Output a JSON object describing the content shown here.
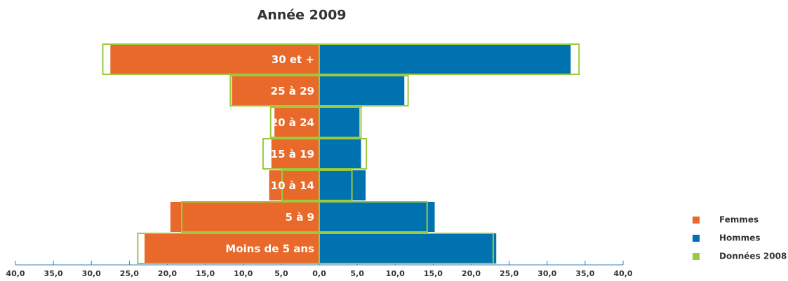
{
  "chart_data": {
    "type": "pyramid",
    "title": "Année 2009",
    "categories": [
      "30 et +",
      "25 à 29",
      "20 à 24",
      "15 à 19",
      "10 à 14",
      "5 à 9",
      "Moins de 5 ans"
    ],
    "series": [
      {
        "name": "Femmes",
        "color": "#e8692a",
        "values": [
          27.5,
          11.5,
          5.9,
          6.3,
          6.6,
          19.6,
          23.0
        ]
      },
      {
        "name": "Hommes",
        "color": "#0072b0",
        "values": [
          33.1,
          11.2,
          5.3,
          5.5,
          6.1,
          15.2,
          23.3
        ]
      },
      {
        "name": "Données 2008",
        "color": "#9dc93c",
        "values_left": [
          28.5,
          11.7,
          6.4,
          7.4,
          4.9,
          18.1,
          23.9
        ],
        "values_right": [
          34.2,
          11.7,
          5.5,
          6.2,
          4.3,
          14.2,
          22.9
        ]
      }
    ],
    "xlim": [
      0,
      40
    ],
    "xticks_left": [
      {
        "value": 40,
        "label": "40,0"
      },
      {
        "value": 35,
        "label": "35,0"
      },
      {
        "value": 30,
        "label": "30,0"
      },
      {
        "value": 25,
        "label": "25,0"
      },
      {
        "value": 20,
        "label": "20,0"
      },
      {
        "value": 15,
        "label": "15,0"
      },
      {
        "value": 10,
        "label": "10,0"
      },
      {
        "value": 5,
        "label": "5,0"
      }
    ],
    "xticks_right": [
      {
        "value": 0,
        "label": "0,0"
      },
      {
        "value": 5,
        "label": "5,0"
      },
      {
        "value": 10,
        "label": "10,0"
      },
      {
        "value": 15,
        "label": "15,0"
      },
      {
        "value": 20,
        "label": "20,0"
      },
      {
        "value": 25,
        "label": "25,0"
      },
      {
        "value": 30,
        "label": "30,0"
      },
      {
        "value": 35,
        "label": "35,0"
      },
      {
        "value": 40,
        "label": "40,0"
      }
    ]
  }
}
